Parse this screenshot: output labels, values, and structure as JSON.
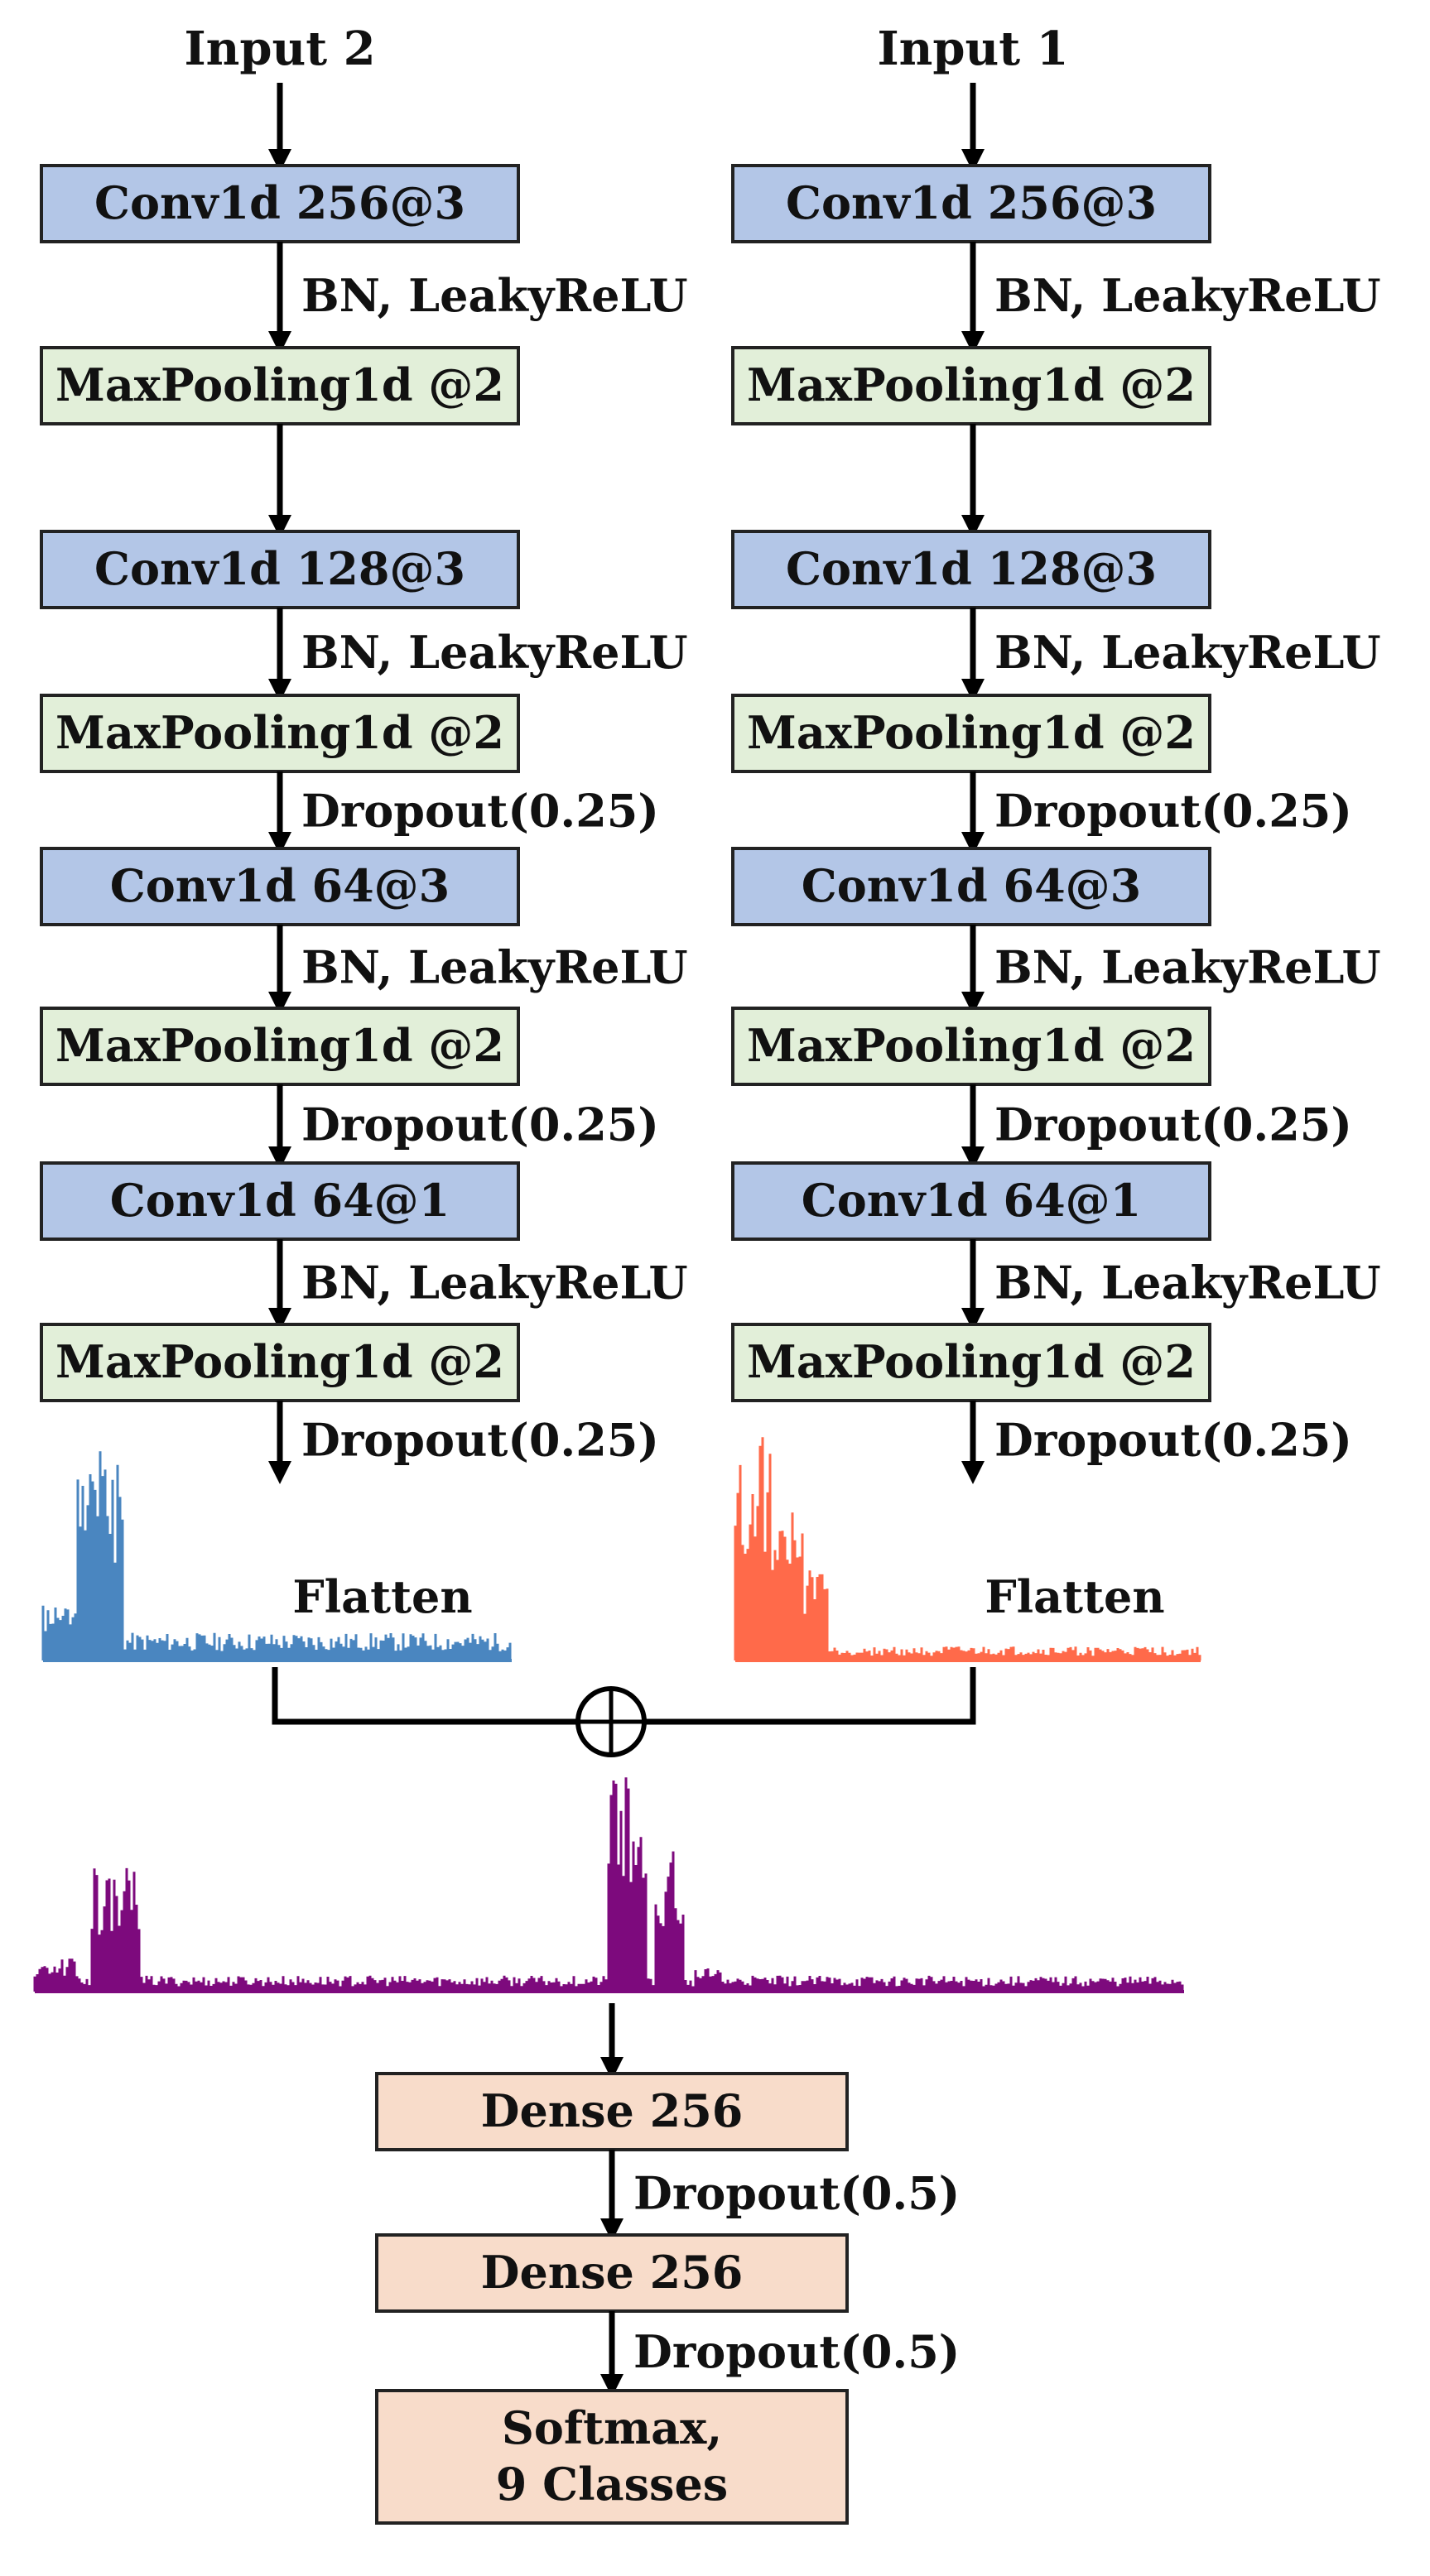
{
  "colors": {
    "conv_fill": "#b3c6e7",
    "pool_fill": "#e2efd9",
    "dense_fill": "#f8dcca",
    "signal_input2": "#4a86c0",
    "signal_input1": "#ff6a4a",
    "signal_merged": "#7d0a7d"
  },
  "branches": {
    "left": {
      "input": "Input 2",
      "flatten": "Flatten",
      "layers": [
        {
          "label": "Conv1d 256@3",
          "kind": "conv",
          "after": "BN, LeakyReLU"
        },
        {
          "label": "MaxPooling1d @2",
          "kind": "pool",
          "after": ""
        },
        {
          "label": "Conv1d 128@3",
          "kind": "conv",
          "after": "BN, LeakyReLU"
        },
        {
          "label": "MaxPooling1d @2",
          "kind": "pool",
          "after": "Dropout(0.25)"
        },
        {
          "label": "Conv1d 64@3",
          "kind": "conv",
          "after": "BN, LeakyReLU"
        },
        {
          "label": "MaxPooling1d @2",
          "kind": "pool",
          "after": "Dropout(0.25)"
        },
        {
          "label": "Conv1d 64@1",
          "kind": "conv",
          "after": "BN, LeakyReLU"
        },
        {
          "label": "MaxPooling1d @2",
          "kind": "pool",
          "after": "Dropout(0.25)"
        }
      ]
    },
    "right": {
      "input": "Input 1",
      "flatten": "Flatten",
      "layers": [
        {
          "label": "Conv1d 256@3",
          "kind": "conv",
          "after": "BN, LeakyReLU"
        },
        {
          "label": "MaxPooling1d @2",
          "kind": "pool",
          "after": ""
        },
        {
          "label": "Conv1d 128@3",
          "kind": "conv",
          "after": "BN, LeakyReLU"
        },
        {
          "label": "MaxPooling1d @2",
          "kind": "pool",
          "after": "Dropout(0.25)"
        },
        {
          "label": "Conv1d 64@3",
          "kind": "conv",
          "after": "BN, LeakyReLU"
        },
        {
          "label": "MaxPooling1d @2",
          "kind": "pool",
          "after": "Dropout(0.25)"
        },
        {
          "label": "Conv1d 64@1",
          "kind": "conv",
          "after": "BN, LeakyReLU"
        },
        {
          "label": "MaxPooling1d @2",
          "kind": "pool",
          "after": "Dropout(0.25)"
        }
      ]
    }
  },
  "merge": {
    "symbol": "⊕"
  },
  "head": {
    "layers": [
      {
        "lines": [
          "Dense 256"
        ],
        "after": "Dropout(0.5)"
      },
      {
        "lines": [
          "Dense 256"
        ],
        "after": "Dropout(0.5)"
      },
      {
        "lines": [
          "Softmax,",
          "9 Classes"
        ],
        "after": ""
      }
    ]
  }
}
